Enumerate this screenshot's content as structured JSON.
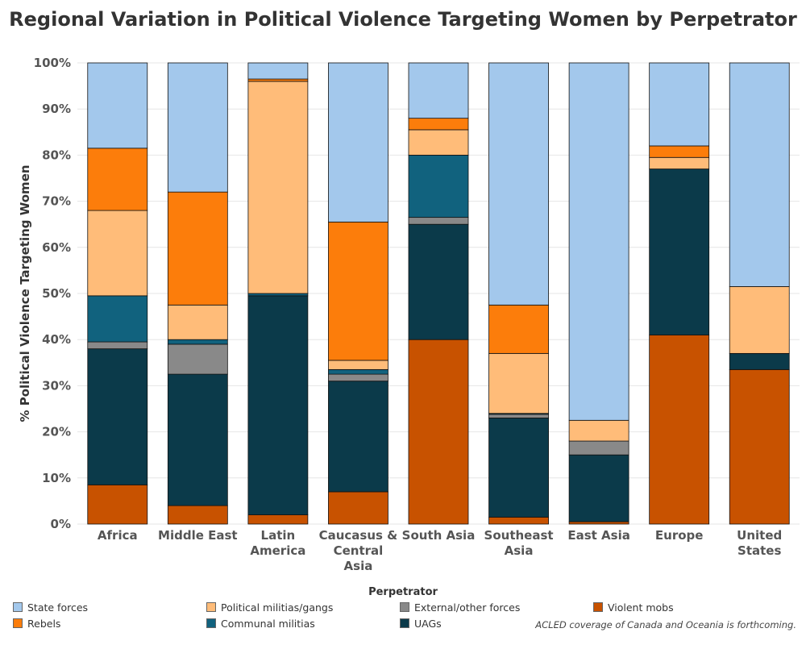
{
  "chart_data": {
    "type": "bar",
    "stacked": true,
    "title": "Regional Variation in Political Violence Targeting Women by Perpetrator",
    "ylabel": "% Political Violence Targeting Women",
    "xlabel": "",
    "ylim": [
      0,
      100
    ],
    "yticks": [
      "0%",
      "10%",
      "20%",
      "30%",
      "40%",
      "50%",
      "60%",
      "70%",
      "80%",
      "90%",
      "100%"
    ],
    "grid": true,
    "categories": [
      [
        "Africa"
      ],
      [
        "Middle East"
      ],
      [
        "Latin",
        "America"
      ],
      [
        "Caucasus &",
        "Central",
        "Asia"
      ],
      [
        "South Asia"
      ],
      [
        "Southeast",
        "Asia"
      ],
      [
        "East Asia"
      ],
      [
        "Europe"
      ],
      [
        "United",
        "States"
      ]
    ],
    "series": [
      {
        "name": "Violent mobs",
        "color": "#c85200",
        "values": [
          8.5,
          4.0,
          2.0,
          7.0,
          40.0,
          1.5,
          0.5,
          41.0,
          33.5
        ]
      },
      {
        "name": "UAGs",
        "color": "#0b3a4a",
        "values": [
          29.5,
          28.5,
          47.5,
          24.0,
          25.0,
          21.5,
          14.5,
          36.0,
          3.5
        ]
      },
      {
        "name": "External/other forces",
        "color": "#898989",
        "values": [
          1.5,
          6.5,
          0.0,
          1.5,
          1.5,
          0.8,
          3.0,
          0.0,
          0.0
        ]
      },
      {
        "name": "Communal militias",
        "color": "#11627e",
        "values": [
          10.0,
          1.0,
          0.5,
          1.0,
          13.5,
          0.2,
          0.0,
          0.0,
          0.0
        ]
      },
      {
        "name": "Political militias/gangs",
        "color": "#ffbc79",
        "values": [
          18.5,
          7.5,
          46.0,
          2.0,
          5.5,
          13.0,
          4.5,
          2.5,
          14.5
        ]
      },
      {
        "name": "Rebels",
        "color": "#fc7d0b",
        "values": [
          13.5,
          24.5,
          0.5,
          30.0,
          2.5,
          10.5,
          0.0,
          2.5,
          0.0
        ]
      },
      {
        "name": "State forces",
        "color": "#a3c8ec",
        "values": [
          18.5,
          28.0,
          3.5,
          34.5,
          12.0,
          52.5,
          77.5,
          18.0,
          48.5
        ]
      }
    ],
    "legend": {
      "title": "Perpetrator",
      "placement": "bottom",
      "entries": [
        {
          "name": "State forces",
          "color": "#a3c8ec"
        },
        {
          "name": "Political militias/gangs",
          "color": "#ffbc79"
        },
        {
          "name": "External/other forces",
          "color": "#898989"
        },
        {
          "name": "Violent mobs",
          "color": "#c85200"
        },
        {
          "name": "Rebels",
          "color": "#fc7d0b"
        },
        {
          "name": "Communal militias",
          "color": "#11627e"
        },
        {
          "name": "UAGs",
          "color": "#0b3a4a"
        }
      ]
    },
    "note": "ACLED coverage of Canada and Oceania is forthcoming."
  }
}
